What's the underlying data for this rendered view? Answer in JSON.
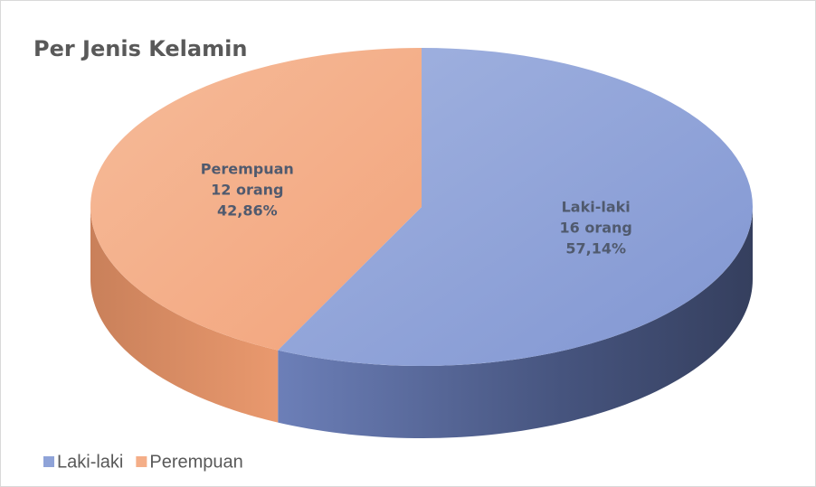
{
  "chart_data": {
    "type": "pie",
    "title": "Per Jenis Kelamin",
    "categories": [
      "Laki-laki",
      "Perempuan"
    ],
    "values": [
      16,
      12
    ],
    "value_labels": [
      "16 orang",
      "12 orang"
    ],
    "percentages": [
      57.14,
      42.86
    ],
    "percentage_labels": [
      "57,14%",
      "42,86%"
    ],
    "colors": [
      "#8fa3d8",
      "#f4ae88"
    ],
    "legend": "bottom-left"
  }
}
